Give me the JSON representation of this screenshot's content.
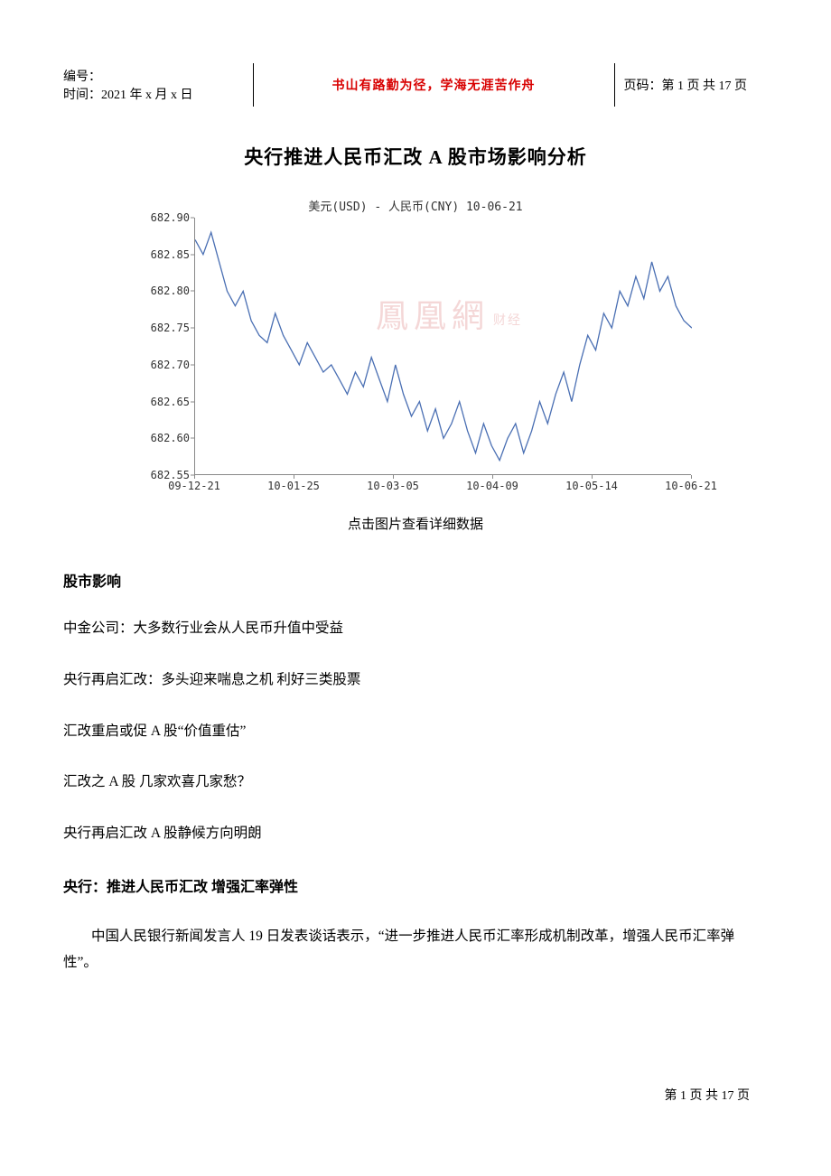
{
  "header": {
    "serial_label": "编号：",
    "time_label": "时间：2021 年 x 月 x 日",
    "motto": "书山有路勤为径，学海无涯苦作舟",
    "page_label": "页码：第 1 页  共 17 页"
  },
  "title": "央行推进人民币汇改  A 股市场影响分析",
  "chart": {
    "title": "美元(USD) - 人民币(CNY)  10-06-21",
    "watermark_main": "鳳凰網",
    "watermark_sub": "财经",
    "x_labels": [
      "09-12-21",
      "10-01-25",
      "10-03-05",
      "10-04-09",
      "10-05-14",
      "10-06-21"
    ],
    "y_min": 682.55,
    "y_max": 682.9,
    "y_step": 0.05,
    "y_labels": [
      "682.55",
      "682.60",
      "682.65",
      "682.70",
      "682.75",
      "682.80",
      "682.85",
      "682.90"
    ],
    "line_color": "#4a6fb3",
    "bg_color": "#ffffff",
    "series": [
      682.87,
      682.85,
      682.88,
      682.84,
      682.8,
      682.78,
      682.8,
      682.76,
      682.74,
      682.73,
      682.77,
      682.74,
      682.72,
      682.7,
      682.73,
      682.71,
      682.69,
      682.7,
      682.68,
      682.66,
      682.69,
      682.67,
      682.71,
      682.68,
      682.65,
      682.7,
      682.66,
      682.63,
      682.65,
      682.61,
      682.64,
      682.6,
      682.62,
      682.65,
      682.61,
      682.58,
      682.62,
      682.59,
      682.57,
      682.6,
      682.62,
      682.58,
      682.61,
      682.65,
      682.62,
      682.66,
      682.69,
      682.65,
      682.7,
      682.74,
      682.72,
      682.77,
      682.75,
      682.8,
      682.78,
      682.82,
      682.79,
      682.84,
      682.8,
      682.82,
      682.78,
      682.76,
      682.75
    ]
  },
  "chart_caption": "点击图片查看详细数据",
  "section1": "股市影响",
  "lines": [
    "中金公司：大多数行业会从人民币升值中受益",
    "央行再启汇改：多头迎来喘息之机  利好三类股票",
    "汇改重启或促 A 股“价值重估”",
    "汇改之 A 股  几家欢喜几家愁？",
    "央行再启汇改  A 股静候方向明朗"
  ],
  "section2": "央行：推进人民币汇改  增强汇率弹性",
  "para": "中国人民银行新闻发言人 19 日发表谈话表示，“进一步推进人民币汇率形成机制改革，增强人民币汇率弹性”。",
  "footer": "第  1  页  共  17  页"
}
